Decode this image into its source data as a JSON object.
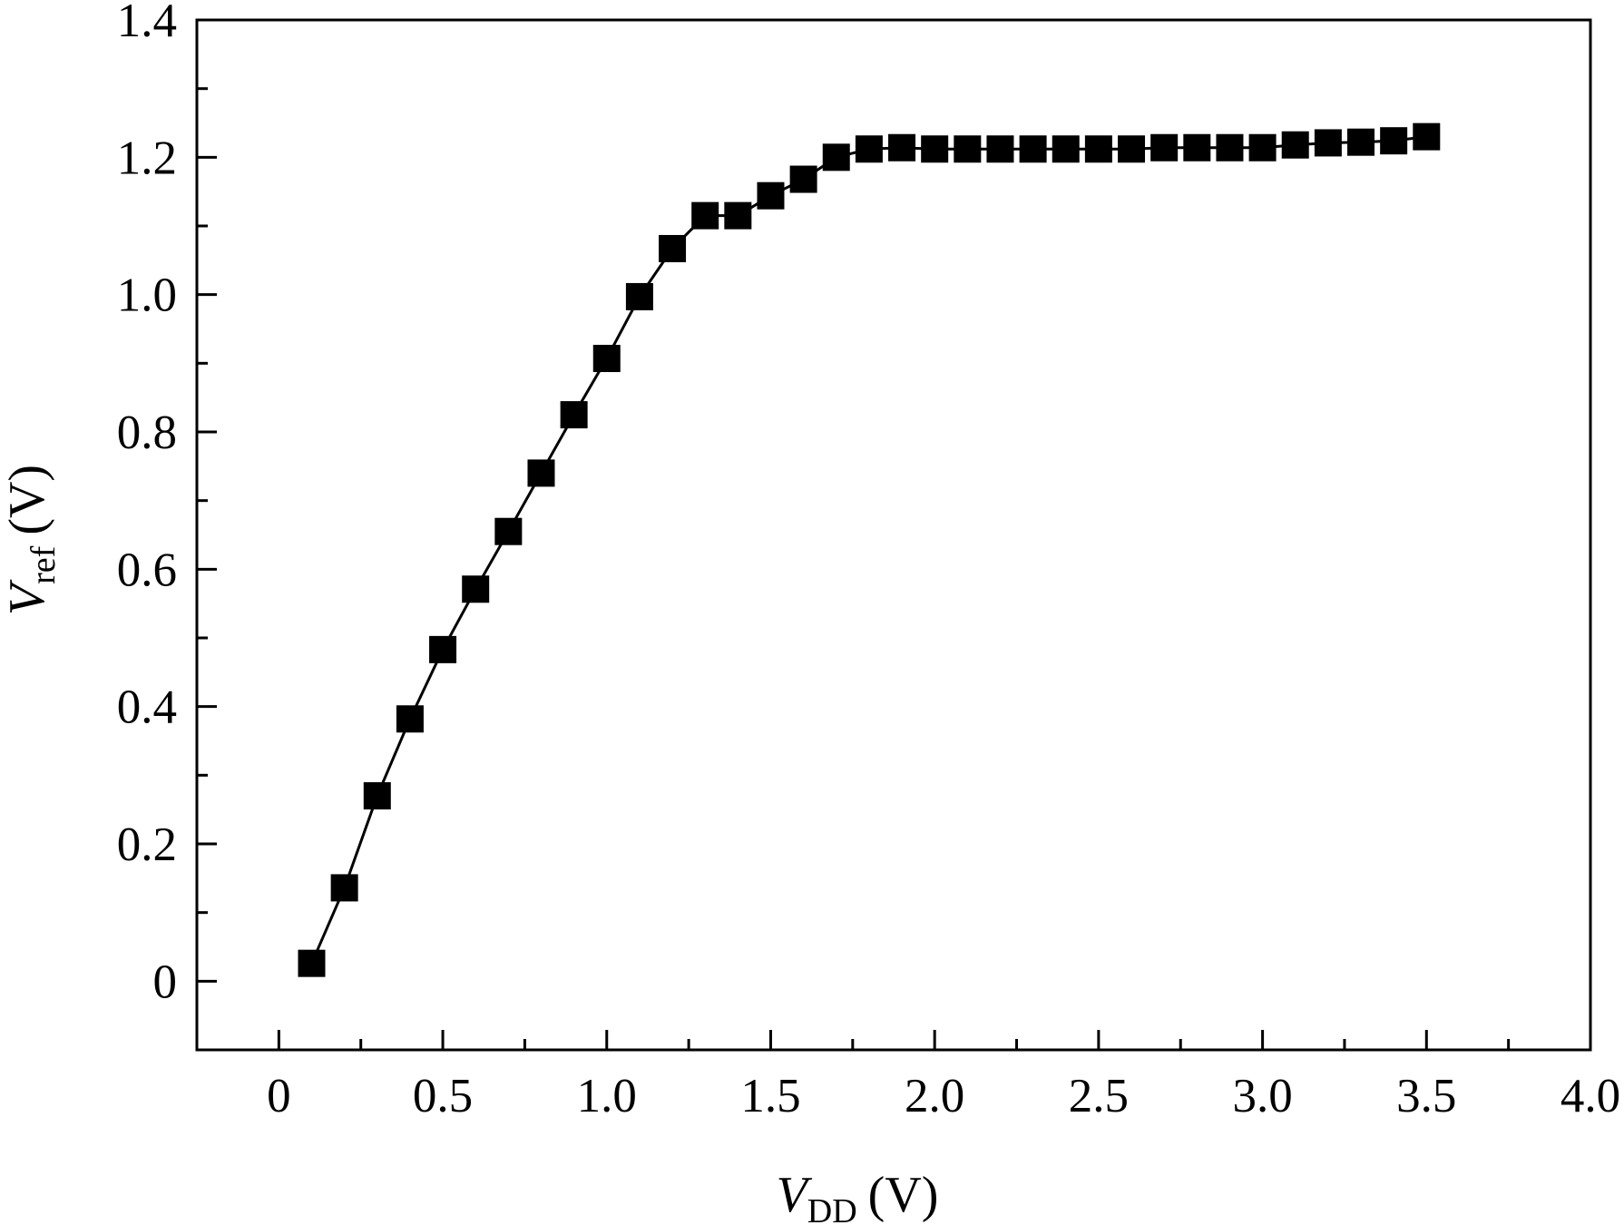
{
  "chart_data": {
    "type": "line",
    "title": "",
    "xlabel": {
      "symbol": "V",
      "subscript": "DD",
      "unit": "(V)"
    },
    "ylabel": {
      "symbol": "V",
      "subscript": "ref",
      "unit": "(V)"
    },
    "xlim": [
      -0.25,
      4.0
    ],
    "ylim": [
      -0.1,
      1.4
    ],
    "x_ticks": [
      0,
      0.5,
      1.0,
      1.5,
      2.0,
      2.5,
      3.0,
      3.5,
      4.0
    ],
    "x_tick_labels": [
      "0",
      "0.5",
      "1.0",
      "1.5",
      "2.0",
      "2.5",
      "3.0",
      "3.5",
      "4.0"
    ],
    "y_ticks": [
      0,
      0.2,
      0.4,
      0.6,
      0.8,
      1.0,
      1.2,
      1.4
    ],
    "y_tick_labels": [
      "0",
      "0.2",
      "0.4",
      "0.6",
      "0.8",
      "1.0",
      "1.2",
      "1.4"
    ],
    "x_minor_step": 0.25,
    "y_minor_step": 0.1,
    "grid": false,
    "legend": "none",
    "marker": "square",
    "color": "#000000",
    "series": [
      {
        "x": [
          0.1,
          0.2,
          0.3,
          0.4,
          0.5,
          0.6,
          0.7,
          0.8,
          0.9,
          1.0,
          1.1,
          1.2,
          1.3,
          1.4,
          1.5,
          1.6,
          1.7,
          1.8,
          1.9,
          2.0,
          2.1,
          2.2,
          2.3,
          2.4,
          2.5,
          2.6,
          2.7,
          2.8,
          2.9,
          3.0,
          3.1,
          3.2,
          3.3,
          3.4,
          3.5
        ],
        "y": [
          0.026,
          0.136,
          0.27,
          0.382,
          0.483,
          0.571,
          0.655,
          0.74,
          0.825,
          0.907,
          0.997,
          1.067,
          1.115,
          1.115,
          1.144,
          1.168,
          1.2,
          1.212,
          1.214,
          1.212,
          1.212,
          1.212,
          1.212,
          1.212,
          1.212,
          1.212,
          1.214,
          1.214,
          1.214,
          1.214,
          1.218,
          1.221,
          1.222,
          1.224,
          1.23
        ]
      }
    ]
  }
}
